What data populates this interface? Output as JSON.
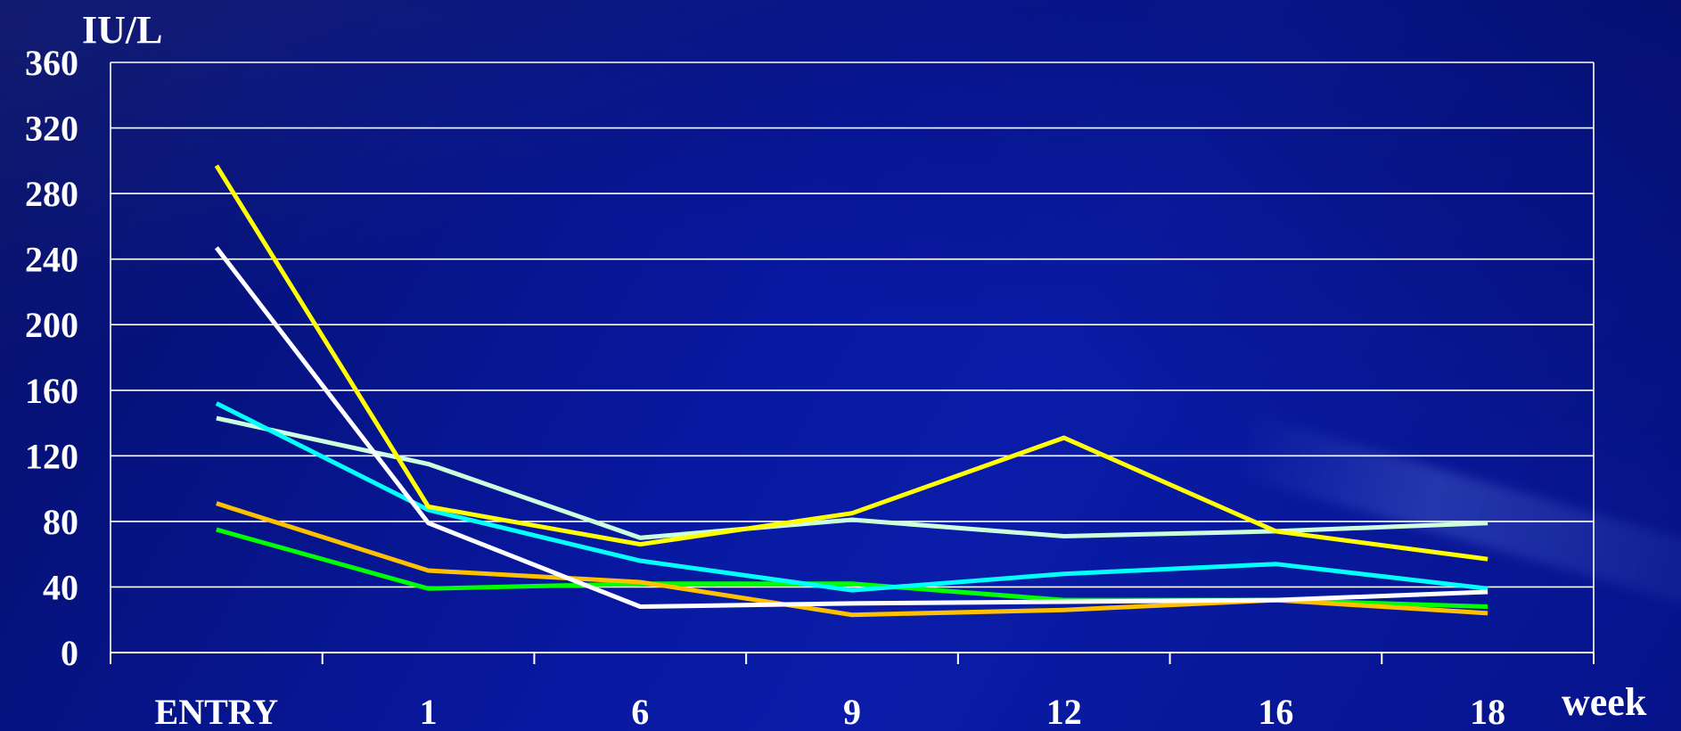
{
  "chart_data": {
    "type": "line",
    "title": "",
    "ylabel": "IU/L",
    "xlabel": "week",
    "categories": [
      "ENTRY",
      "1",
      "6",
      "9",
      "12",
      "16",
      "18"
    ],
    "ylim": [
      0,
      360
    ],
    "yticks": [
      "0",
      "40",
      "80",
      "120",
      "160",
      "200",
      "240",
      "280",
      "320",
      "360"
    ],
    "grid": true,
    "series": [
      {
        "color": "#ffff00",
        "values": [
          297,
          89,
          66,
          85,
          131,
          74,
          57
        ]
      },
      {
        "color": "#ffffff",
        "values": [
          247,
          79,
          28,
          30,
          31,
          32,
          37
        ]
      },
      {
        "color": "#00ffff",
        "values": [
          152,
          87,
          56,
          38,
          48,
          54,
          39
        ]
      },
      {
        "color": "#ccffdd",
        "values": [
          143,
          115,
          70,
          81,
          71,
          74,
          79
        ]
      },
      {
        "color": "#ffc000",
        "values": [
          91,
          50,
          43,
          23,
          26,
          32,
          24
        ]
      },
      {
        "color": "#00ff00",
        "values": [
          75,
          39,
          42,
          42,
          32,
          32,
          28
        ]
      }
    ]
  }
}
